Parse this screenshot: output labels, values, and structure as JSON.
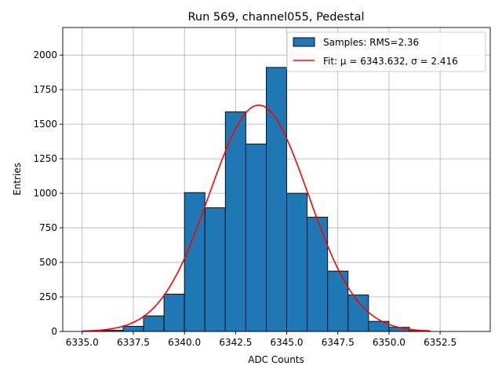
{
  "chart_data": {
    "type": "bar",
    "title": "Run 569, channel055, Pedestal",
    "xlabel": "ADC Counts",
    "ylabel": "Entries",
    "xlim": [
      6334.05,
      6354.95
    ],
    "ylim": [
      0,
      2200
    ],
    "grid": true,
    "legend_position": "top-right",
    "x_ticks": [
      6335.0,
      6337.5,
      6340.0,
      6342.5,
      6345.0,
      6347.5,
      6350.0,
      6352.5
    ],
    "x_tick_labels": [
      "6335.0",
      "6337.5",
      "6340.0",
      "6342.5",
      "6345.0",
      "6347.5",
      "6350.0",
      "6352.5"
    ],
    "y_ticks": [
      0,
      250,
      500,
      750,
      1000,
      1250,
      1500,
      1750,
      2000
    ],
    "y_tick_labels": [
      "0",
      "250",
      "500",
      "750",
      "1000",
      "1250",
      "1500",
      "1750",
      "2000"
    ],
    "histogram": {
      "name": "Samples: RMS=2.36",
      "color": "#1f77b4",
      "edge_color": "#000000",
      "bin_edges": [
        6335.0,
        6336.0,
        6337.0,
        6338.0,
        6339.0,
        6340.0,
        6341.0,
        6342.0,
        6343.0,
        6344.0,
        6345.0,
        6346.0,
        6347.0,
        6348.0,
        6349.0,
        6350.0,
        6351.0,
        6352.0,
        6353.0,
        6354.0
      ],
      "counts": [
        2,
        8,
        37,
        113,
        270,
        1005,
        895,
        1590,
        1357,
        1911,
        1000,
        827,
        437,
        264,
        73,
        30,
        5,
        0,
        0
      ]
    },
    "fit": {
      "name": "Fit: μ = 6343.632, σ = 2.416",
      "color": "#ff0000",
      "mu": 6343.632,
      "sigma": 2.416,
      "amplitude": 1638,
      "x_range": [
        6335.0,
        6352.0
      ]
    }
  }
}
